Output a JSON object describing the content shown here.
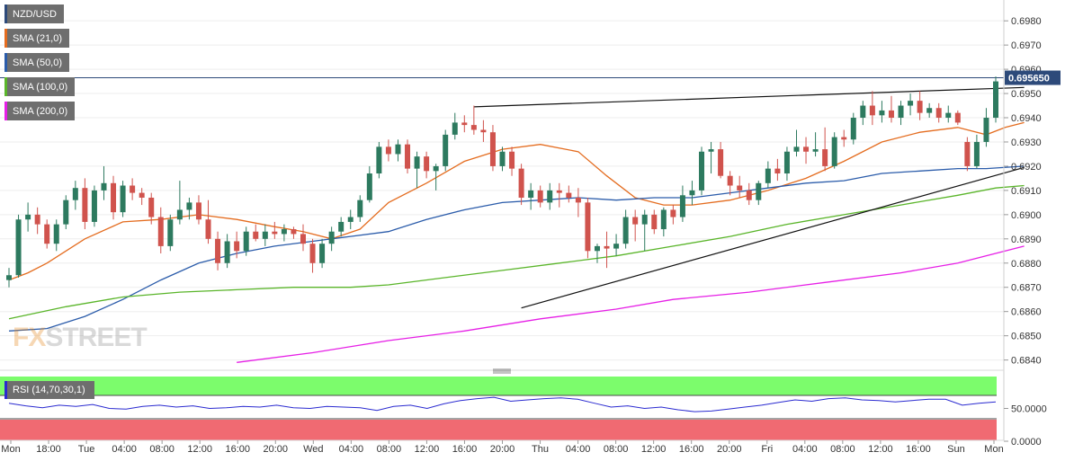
{
  "chart_data": {
    "type": "candlestick",
    "symbol": "NZD/USD",
    "indicators": [
      {
        "name": "SMA (21,0)",
        "color": "#e46c1f"
      },
      {
        "name": "SMA (50,0)",
        "color": "#2b5caa"
      },
      {
        "name": "SMA (100,0)",
        "color": "#5ab52a"
      },
      {
        "name": "SMA (200,0)",
        "color": "#e61fe6"
      }
    ],
    "price_axis": {
      "ylim": [
        0.6838,
        0.6986
      ],
      "ticks": [
        "0.6980",
        "0.6970",
        "0.6960",
        "0.6950",
        "0.6940",
        "0.6930",
        "0.6920",
        "0.6910",
        "0.6900",
        "0.6890",
        "0.6880",
        "0.6870",
        "0.6860",
        "0.6850",
        "0.6840"
      ]
    },
    "current_price": "0.695650",
    "horizontal_line": 0.69565,
    "x_ticks": [
      "Mon",
      "18:00",
      "Tue",
      "04:00",
      "08:00",
      "12:00",
      "16:00",
      "20:00",
      "Wed",
      "04:00",
      "08:00",
      "12:00",
      "16:00",
      "20:00",
      "Thu",
      "04:00",
      "08:00",
      "12:00",
      "16:00",
      "20:00",
      "Fri",
      "04:00",
      "08:00",
      "12:00",
      "16:00",
      "Sun",
      "Mon"
    ],
    "rsi": {
      "label": "RSI (14,70,30,1)",
      "ticks": [
        "50.0000",
        "0.0000"
      ],
      "upper": 70,
      "lower": 30,
      "values": [
        58,
        54,
        51,
        55,
        53,
        56,
        50,
        49,
        53,
        55,
        52,
        54,
        50,
        51,
        53,
        52,
        55,
        51,
        50,
        53,
        52,
        51,
        47,
        53,
        55,
        50,
        57,
        62,
        65,
        67,
        61,
        63,
        65,
        66,
        64,
        58,
        52,
        54,
        50,
        52,
        48,
        45,
        46,
        49,
        52,
        55,
        59,
        63,
        61,
        65,
        66,
        63,
        62,
        60,
        62,
        64,
        64,
        55,
        58,
        60
      ]
    },
    "candles": [
      [
        0.6873,
        0.6878,
        0.687,
        0.6875
      ],
      [
        0.6875,
        0.69,
        0.6874,
        0.6898
      ],
      [
        0.6898,
        0.6905,
        0.6893,
        0.69
      ],
      [
        0.69,
        0.6903,
        0.6892,
        0.6896
      ],
      [
        0.6896,
        0.6898,
        0.6886,
        0.6888
      ],
      [
        0.6888,
        0.6898,
        0.6885,
        0.6896
      ],
      [
        0.6896,
        0.6908,
        0.6894,
        0.6906
      ],
      [
        0.6906,
        0.6914,
        0.6902,
        0.6911
      ],
      [
        0.6911,
        0.6915,
        0.6894,
        0.6897
      ],
      [
        0.6897,
        0.6912,
        0.6895,
        0.691
      ],
      [
        0.691,
        0.692,
        0.6906,
        0.6913
      ],
      [
        0.6913,
        0.6916,
        0.6898,
        0.6901
      ],
      [
        0.6901,
        0.6914,
        0.6899,
        0.6912
      ],
      [
        0.6912,
        0.6915,
        0.6906,
        0.6909
      ],
      [
        0.6909,
        0.6911,
        0.6904,
        0.6907
      ],
      [
        0.6907,
        0.6909,
        0.6896,
        0.6899
      ],
      [
        0.6899,
        0.6903,
        0.6884,
        0.6887
      ],
      [
        0.6887,
        0.69,
        0.6885,
        0.6898
      ],
      [
        0.6898,
        0.6914,
        0.6896,
        0.6902
      ],
      [
        0.6902,
        0.6907,
        0.6898,
        0.6905
      ],
      [
        0.6905,
        0.6908,
        0.6896,
        0.6898
      ],
      [
        0.6898,
        0.6906,
        0.6888,
        0.689
      ],
      [
        0.689,
        0.6893,
        0.6877,
        0.688
      ],
      [
        0.688,
        0.6892,
        0.6878,
        0.6889
      ],
      [
        0.6889,
        0.6893,
        0.6882,
        0.6885
      ],
      [
        0.6885,
        0.6895,
        0.6883,
        0.6893
      ],
      [
        0.6893,
        0.6896,
        0.6889,
        0.689
      ],
      [
        0.689,
        0.6896,
        0.6887,
        0.6893
      ],
      [
        0.6893,
        0.6897,
        0.689,
        0.6892
      ],
      [
        0.6892,
        0.6896,
        0.6889,
        0.6894
      ],
      [
        0.6894,
        0.6895,
        0.689,
        0.6892
      ],
      [
        0.6892,
        0.6896,
        0.6885,
        0.6888
      ],
      [
        0.6888,
        0.689,
        0.6876,
        0.688
      ],
      [
        0.688,
        0.689,
        0.6878,
        0.6888
      ],
      [
        0.6888,
        0.6895,
        0.6885,
        0.6893
      ],
      [
        0.6893,
        0.6899,
        0.6891,
        0.6897
      ],
      [
        0.6897,
        0.6902,
        0.6894,
        0.6899
      ],
      [
        0.6899,
        0.6908,
        0.6897,
        0.6906
      ],
      [
        0.6906,
        0.692,
        0.6905,
        0.6917
      ],
      [
        0.6917,
        0.693,
        0.6915,
        0.6928
      ],
      [
        0.6928,
        0.6931,
        0.6922,
        0.6925
      ],
      [
        0.6925,
        0.6931,
        0.6922,
        0.6929
      ],
      [
        0.6929,
        0.6931,
        0.6917,
        0.6919
      ],
      [
        0.6919,
        0.6926,
        0.6911,
        0.6924
      ],
      [
        0.6924,
        0.6926,
        0.6915,
        0.6918
      ],
      [
        0.6918,
        0.6921,
        0.691,
        0.692
      ],
      [
        0.692,
        0.6935,
        0.6918,
        0.6933
      ],
      [
        0.6933,
        0.6942,
        0.6931,
        0.6938
      ],
      [
        0.6938,
        0.6941,
        0.6934,
        0.6937
      ],
      [
        0.6937,
        0.6945,
        0.6933,
        0.6935
      ],
      [
        0.6935,
        0.6939,
        0.693,
        0.6934
      ],
      [
        0.6934,
        0.6937,
        0.6918,
        0.692
      ],
      [
        0.692,
        0.6928,
        0.6918,
        0.6926
      ],
      [
        0.6926,
        0.6928,
        0.6916,
        0.6919
      ],
      [
        0.6919,
        0.6921,
        0.6904,
        0.6907
      ],
      [
        0.6907,
        0.6913,
        0.6902,
        0.691
      ],
      [
        0.691,
        0.6912,
        0.6903,
        0.6905
      ],
      [
        0.6905,
        0.6913,
        0.6902,
        0.691
      ],
      [
        0.691,
        0.6913,
        0.6903,
        0.6909
      ],
      [
        0.6909,
        0.6912,
        0.6905,
        0.6907
      ],
      [
        0.6907,
        0.6911,
        0.6899,
        0.6905
      ],
      [
        0.6905,
        0.6907,
        0.6882,
        0.6885
      ],
      [
        0.6885,
        0.6888,
        0.688,
        0.6887
      ],
      [
        0.6887,
        0.6893,
        0.6878,
        0.6886
      ],
      [
        0.6886,
        0.6892,
        0.6883,
        0.6888
      ],
      [
        0.6888,
        0.6902,
        0.6886,
        0.6899
      ],
      [
        0.6899,
        0.6902,
        0.6889,
        0.6896
      ],
      [
        0.6896,
        0.6902,
        0.6885,
        0.69
      ],
      [
        0.69,
        0.6902,
        0.6892,
        0.6894
      ],
      [
        0.6894,
        0.6903,
        0.6891,
        0.6902
      ],
      [
        0.6902,
        0.6904,
        0.6896,
        0.6899
      ],
      [
        0.6899,
        0.6912,
        0.6897,
        0.6908
      ],
      [
        0.6908,
        0.6914,
        0.6904,
        0.691
      ],
      [
        0.691,
        0.6928,
        0.6908,
        0.6926
      ],
      [
        0.6926,
        0.693,
        0.6917,
        0.6927
      ],
      [
        0.6927,
        0.693,
        0.6915,
        0.6916
      ],
      [
        0.6916,
        0.6918,
        0.6908,
        0.6912
      ],
      [
        0.6912,
        0.6916,
        0.6907,
        0.691
      ],
      [
        0.691,
        0.6913,
        0.6904,
        0.6906
      ],
      [
        0.6906,
        0.6914,
        0.6904,
        0.6913
      ],
      [
        0.6913,
        0.6922,
        0.6911,
        0.6919
      ],
      [
        0.6919,
        0.6923,
        0.6914,
        0.6917
      ],
      [
        0.6917,
        0.6928,
        0.6914,
        0.6926
      ],
      [
        0.6926,
        0.6935,
        0.6924,
        0.6928
      ],
      [
        0.6928,
        0.6932,
        0.6921,
        0.6926
      ],
      [
        0.6926,
        0.6934,
        0.6924,
        0.6927
      ],
      [
        0.6927,
        0.6936,
        0.6918,
        0.692
      ],
      [
        0.692,
        0.6934,
        0.6919,
        0.6932
      ],
      [
        0.6932,
        0.6935,
        0.6928,
        0.6931
      ],
      [
        0.6931,
        0.6942,
        0.6929,
        0.694
      ],
      [
        0.694,
        0.6947,
        0.6937,
        0.6945
      ],
      [
        0.6945,
        0.6951,
        0.6937,
        0.6941
      ],
      [
        0.6941,
        0.6947,
        0.6938,
        0.6943
      ],
      [
        0.6943,
        0.6949,
        0.6938,
        0.694
      ],
      [
        0.694,
        0.6947,
        0.6937,
        0.6945
      ],
      [
        0.6945,
        0.695,
        0.6941,
        0.6947
      ],
      [
        0.6947,
        0.6951,
        0.6939,
        0.6942
      ],
      [
        0.6942,
        0.6946,
        0.694,
        0.6944
      ],
      [
        0.6944,
        0.6946,
        0.6938,
        0.694
      ],
      [
        0.694,
        0.6945,
        0.6938,
        0.6942
      ],
      [
        0.6942,
        0.6943,
        0.6937,
        0.6938
      ],
      [
        0.693,
        0.6932,
        0.6918,
        0.692
      ],
      [
        0.692,
        0.6933,
        0.6919,
        0.693
      ],
      [
        0.693,
        0.6944,
        0.6928,
        0.694
      ],
      [
        0.694,
        0.6957,
        0.6938,
        0.6955
      ]
    ],
    "sma": {
      "SMA (21,0)": [
        [
          0,
          0.6873
        ],
        [
          2,
          0.6876
        ],
        [
          4,
          0.688
        ],
        [
          8,
          0.689
        ],
        [
          12,
          0.6897
        ],
        [
          16,
          0.6898
        ],
        [
          20,
          0.69
        ],
        [
          24,
          0.6898
        ],
        [
          28,
          0.6895
        ],
        [
          31,
          0.6893
        ],
        [
          34,
          0.689
        ],
        [
          37,
          0.6894
        ],
        [
          40,
          0.6905
        ],
        [
          44,
          0.6913
        ],
        [
          48,
          0.6922
        ],
        [
          52,
          0.6927
        ],
        [
          56,
          0.6929
        ],
        [
          60,
          0.6926
        ],
        [
          63,
          0.6916
        ],
        [
          66,
          0.6907
        ],
        [
          69,
          0.6904
        ],
        [
          72,
          0.6904
        ],
        [
          76,
          0.6906
        ],
        [
          80,
          0.691
        ],
        [
          84,
          0.6915
        ],
        [
          88,
          0.6922
        ],
        [
          92,
          0.693
        ],
        [
          96,
          0.6934
        ],
        [
          100,
          0.6936
        ],
        [
          103,
          0.6933
        ],
        [
          105,
          0.6936
        ],
        [
          107,
          0.6938
        ]
      ],
      "SMA (50,0)": [
        [
          0,
          0.6852
        ],
        [
          4,
          0.6853
        ],
        [
          8,
          0.6858
        ],
        [
          12,
          0.6865
        ],
        [
          16,
          0.6873
        ],
        [
          20,
          0.688
        ],
        [
          24,
          0.6884
        ],
        [
          28,
          0.6887
        ],
        [
          32,
          0.6889
        ],
        [
          36,
          0.6891
        ],
        [
          40,
          0.6893
        ],
        [
          44,
          0.6898
        ],
        [
          48,
          0.6902
        ],
        [
          52,
          0.6905
        ],
        [
          56,
          0.6906
        ],
        [
          60,
          0.6907
        ],
        [
          64,
          0.6906
        ],
        [
          68,
          0.6907
        ],
        [
          72,
          0.6907
        ],
        [
          76,
          0.6909
        ],
        [
          80,
          0.6911
        ],
        [
          84,
          0.6913
        ],
        [
          88,
          0.6914
        ],
        [
          92,
          0.6917
        ],
        [
          96,
          0.6918
        ],
        [
          100,
          0.6919
        ],
        [
          103,
          0.6919
        ],
        [
          107,
          0.692
        ]
      ],
      "SMA (100,0)": [
        [
          0,
          0.6857
        ],
        [
          6,
          0.6862
        ],
        [
          12,
          0.6866
        ],
        [
          18,
          0.6868
        ],
        [
          24,
          0.6869
        ],
        [
          30,
          0.687
        ],
        [
          36,
          0.687
        ],
        [
          40,
          0.6871
        ],
        [
          46,
          0.6874
        ],
        [
          52,
          0.6877
        ],
        [
          58,
          0.688
        ],
        [
          64,
          0.6883
        ],
        [
          70,
          0.6887
        ],
        [
          76,
          0.6891
        ],
        [
          82,
          0.6896
        ],
        [
          88,
          0.69
        ],
        [
          94,
          0.6904
        ],
        [
          100,
          0.6908
        ],
        [
          104,
          0.6911
        ],
        [
          107,
          0.6912
        ]
      ],
      "SMA (200,0)": [
        [
          24,
          0.6839
        ],
        [
          32,
          0.6843
        ],
        [
          40,
          0.6848
        ],
        [
          48,
          0.6852
        ],
        [
          56,
          0.6857
        ],
        [
          64,
          0.6861
        ],
        [
          70,
          0.6865
        ],
        [
          78,
          0.6868
        ],
        [
          86,
          0.6872
        ],
        [
          94,
          0.6876
        ],
        [
          100,
          0.688
        ],
        [
          107,
          0.6887
        ]
      ]
    },
    "trendlines": [
      [
        [
          49,
          0.69445
        ],
        [
          107,
          0.69525
        ]
      ],
      [
        [
          54,
          0.68615
        ],
        [
          107,
          0.69195
        ]
      ]
    ]
  }
}
